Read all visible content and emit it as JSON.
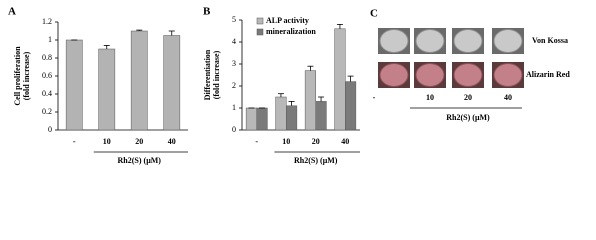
{
  "panels": {
    "a": "A",
    "b": "B",
    "c": "C"
  },
  "chart_data": [
    {
      "type": "bar",
      "ylabel": [
        "Cell proliferation",
        "(fold increase)"
      ],
      "categories": [
        "-",
        "10",
        "20",
        "40"
      ],
      "values": [
        1.0,
        0.9,
        1.1,
        1.05
      ],
      "errors": [
        0,
        0.04,
        0.01,
        0.05
      ],
      "color": "#b3b3b3",
      "ylim": [
        0,
        1.2
      ],
      "yticks": [
        0,
        0.2,
        0.4,
        0.6,
        0.8,
        1,
        1.2
      ],
      "xlabel": "Rh2(S) (μM)"
    },
    {
      "type": "grouped-bar",
      "ylabel": [
        "Differentiation",
        "(fold increase)"
      ],
      "categories": [
        "-",
        "10",
        "20",
        "40"
      ],
      "series": [
        {
          "name": "ALP activity",
          "color": "#b8b8b8",
          "values": [
            1.0,
            1.5,
            2.7,
            4.6
          ],
          "errors": [
            0,
            0.15,
            0.2,
            0.2
          ]
        },
        {
          "name": "mineralization",
          "color": "#7a7a7a",
          "values": [
            1.0,
            1.1,
            1.3,
            2.2
          ],
          "errors": [
            0,
            0.2,
            0.2,
            0.25
          ]
        }
      ],
      "ylim": [
        0,
        5
      ],
      "yticks": [
        0,
        1,
        2,
        3,
        4,
        5
      ],
      "xlabel": "Rh2(S) (μM)",
      "legend": "upper left"
    }
  ],
  "panel_c": {
    "rows": [
      "Von Kossa",
      "Alizarin Red"
    ],
    "categories": [
      "-",
      "10",
      "20",
      "40"
    ],
    "xlabel": "Rh2(S) (μM)"
  }
}
